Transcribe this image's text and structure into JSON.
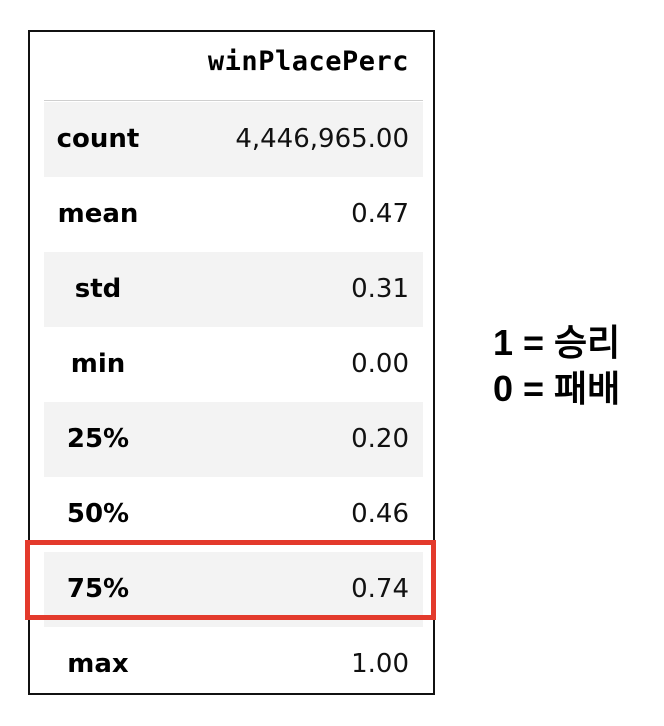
{
  "table": {
    "column_header": "winPlacePerc",
    "rows": [
      {
        "name": "count",
        "value": "4,446,965.00"
      },
      {
        "name": "mean",
        "value": "0.47"
      },
      {
        "name": "std",
        "value": "0.31"
      },
      {
        "name": "min",
        "value": "0.00"
      },
      {
        "name": "25%",
        "value": "0.20"
      },
      {
        "name": "50%",
        "value": "0.46"
      },
      {
        "name": "75%",
        "value": "0.74"
      },
      {
        "name": "max",
        "value": "1.00"
      }
    ]
  },
  "highlighted_row": "75%",
  "highlight_color": "#e33a2c",
  "note": {
    "line1": "1 = 승리",
    "line2": "0 = 패배"
  }
}
